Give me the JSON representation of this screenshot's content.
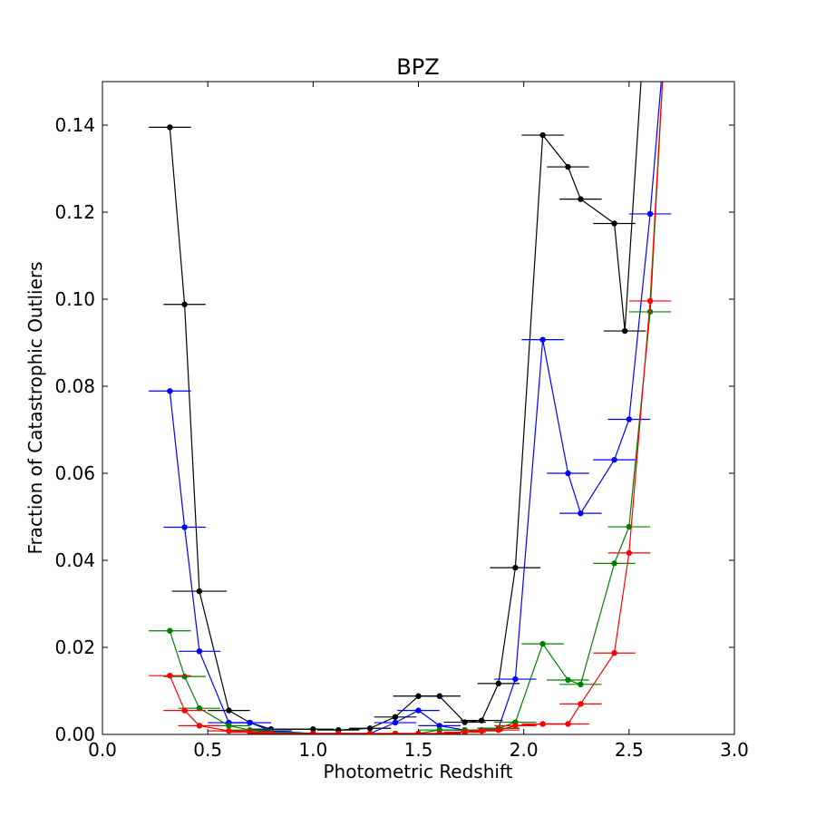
{
  "chart_data": {
    "type": "line",
    "title": "BPZ",
    "xlabel": "Photometric Redshift",
    "ylabel": "Fraction of Catastrophic Outliers",
    "xlim": [
      0.0,
      3.0
    ],
    "ylim": [
      0.0,
      0.15
    ],
    "xticks": [
      0.0,
      0.5,
      1.0,
      1.5,
      2.0,
      2.5,
      3.0
    ],
    "xtick_labels": [
      "0.0",
      "0.5",
      "1.0",
      "1.5",
      "2.0",
      "2.5",
      "3.0"
    ],
    "yticks": [
      0.0,
      0.02,
      0.04,
      0.06,
      0.08,
      0.1,
      0.12,
      0.14
    ],
    "ytick_labels": [
      "0.00",
      "0.02",
      "0.04",
      "0.06",
      "0.08",
      "0.10",
      "0.12",
      "0.14"
    ],
    "grid": false,
    "series": [
      {
        "color": "#000000",
        "points": [
          {
            "x": 0.32,
            "y": 0.1395,
            "xerr": 0.1
          },
          {
            "x": 0.39,
            "y": 0.0988,
            "xerr": 0.1
          },
          {
            "x": 0.46,
            "y": 0.0329,
            "xerr": 0.13
          },
          {
            "x": 0.6,
            "y": 0.0055,
            "xerr": 0.1
          },
          {
            "x": 0.7,
            "y": 0.0027,
            "xerr": 0.1
          },
          {
            "x": 0.8,
            "y": 0.0012,
            "xerr": 0.1
          },
          {
            "x": 1.0,
            "y": 0.0012,
            "xerr": 0.1
          },
          {
            "x": 1.12,
            "y": 0.001,
            "xerr": 0.1
          },
          {
            "x": 1.27,
            "y": 0.0014,
            "xerr": 0.1
          },
          {
            "x": 1.39,
            "y": 0.004,
            "xerr": 0.1
          },
          {
            "x": 1.5,
            "y": 0.0088,
            "xerr": 0.12
          },
          {
            "x": 1.6,
            "y": 0.0088,
            "xerr": 0.1
          },
          {
            "x": 1.72,
            "y": 0.0028,
            "xerr": 0.1
          },
          {
            "x": 1.8,
            "y": 0.0032,
            "xerr": 0.1
          },
          {
            "x": 1.88,
            "y": 0.0117,
            "xerr": 0.1
          },
          {
            "x": 1.96,
            "y": 0.0383,
            "xerr": 0.12
          },
          {
            "x": 2.09,
            "y": 0.1377,
            "xerr": 0.1
          },
          {
            "x": 2.21,
            "y": 0.1304,
            "xerr": 0.1
          },
          {
            "x": 2.27,
            "y": 0.123,
            "xerr": 0.1
          },
          {
            "x": 2.43,
            "y": 0.1174,
            "xerr": 0.1
          },
          {
            "x": 2.48,
            "y": 0.0927,
            "xerr": 0.1
          },
          {
            "x": 2.57,
            "y": 0.16,
            "xerr": 0.0
          }
        ]
      },
      {
        "color": "#0000ff",
        "points": [
          {
            "x": 0.32,
            "y": 0.0789,
            "xerr": 0.1
          },
          {
            "x": 0.39,
            "y": 0.0476,
            "xerr": 0.1
          },
          {
            "x": 0.46,
            "y": 0.0191,
            "xerr": 0.1
          },
          {
            "x": 0.6,
            "y": 0.0027,
            "xerr": 0.1
          },
          {
            "x": 0.7,
            "y": 0.0027,
            "xerr": 0.1
          },
          {
            "x": 0.8,
            "y": 0.0008,
            "xerr": 0.1
          },
          {
            "x": 1.0,
            "y": 0.0002,
            "xerr": 0.1
          },
          {
            "x": 1.12,
            "y": 0.0002,
            "xerr": 0.1
          },
          {
            "x": 1.27,
            "y": 0.0002,
            "xerr": 0.1
          },
          {
            "x": 1.39,
            "y": 0.0027,
            "xerr": 0.1
          },
          {
            "x": 1.5,
            "y": 0.0055,
            "xerr": 0.1
          },
          {
            "x": 1.6,
            "y": 0.002,
            "xerr": 0.1
          },
          {
            "x": 1.72,
            "y": 0.001,
            "xerr": 0.1
          },
          {
            "x": 1.8,
            "y": 0.001,
            "xerr": 0.1
          },
          {
            "x": 1.88,
            "y": 0.0014,
            "xerr": 0.1
          },
          {
            "x": 1.96,
            "y": 0.0127,
            "xerr": 0.1
          },
          {
            "x": 2.09,
            "y": 0.0907,
            "xerr": 0.1
          },
          {
            "x": 2.21,
            "y": 0.06,
            "xerr": 0.1
          },
          {
            "x": 2.27,
            "y": 0.0508,
            "xerr": 0.1
          },
          {
            "x": 2.43,
            "y": 0.0631,
            "xerr": 0.1
          },
          {
            "x": 2.5,
            "y": 0.0724,
            "xerr": 0.1
          },
          {
            "x": 2.6,
            "y": 0.1196,
            "xerr": 0.1
          },
          {
            "x": 2.67,
            "y": 0.16,
            "xerr": 0.0
          }
        ]
      },
      {
        "color": "#008000",
        "points": [
          {
            "x": 0.32,
            "y": 0.0238,
            "xerr": 0.1
          },
          {
            "x": 0.39,
            "y": 0.0133,
            "xerr": 0.1
          },
          {
            "x": 0.46,
            "y": 0.006,
            "xerr": 0.1
          },
          {
            "x": 0.6,
            "y": 0.002,
            "xerr": 0.1
          },
          {
            "x": 0.7,
            "y": 0.001,
            "xerr": 0.1
          },
          {
            "x": 0.8,
            "y": 0.0005,
            "xerr": 0.1
          },
          {
            "x": 1.0,
            "y": 0.0002,
            "xerr": 0.1
          },
          {
            "x": 1.12,
            "y": 0.0002,
            "xerr": 0.1
          },
          {
            "x": 1.27,
            "y": 0.0002,
            "xerr": 0.1
          },
          {
            "x": 1.39,
            "y": 0.0002,
            "xerr": 0.1
          },
          {
            "x": 1.5,
            "y": 0.0002,
            "xerr": 0.1
          },
          {
            "x": 1.6,
            "y": 0.001,
            "xerr": 0.1
          },
          {
            "x": 1.72,
            "y": 0.001,
            "xerr": 0.1
          },
          {
            "x": 1.8,
            "y": 0.001,
            "xerr": 0.1
          },
          {
            "x": 1.88,
            "y": 0.0014,
            "xerr": 0.1
          },
          {
            "x": 1.96,
            "y": 0.0028,
            "xerr": 0.1
          },
          {
            "x": 2.09,
            "y": 0.0208,
            "xerr": 0.1
          },
          {
            "x": 2.21,
            "y": 0.0125,
            "xerr": 0.1
          },
          {
            "x": 2.27,
            "y": 0.0115,
            "xerr": 0.1
          },
          {
            "x": 2.43,
            "y": 0.0393,
            "xerr": 0.1
          },
          {
            "x": 2.5,
            "y": 0.0477,
            "xerr": 0.1
          },
          {
            "x": 2.6,
            "y": 0.0971,
            "xerr": 0.1
          },
          {
            "x": 2.67,
            "y": 0.16,
            "xerr": 0.0
          }
        ]
      },
      {
        "color": "#ff0000",
        "points": [
          {
            "x": 0.32,
            "y": 0.0135,
            "xerr": 0.1
          },
          {
            "x": 0.39,
            "y": 0.0055,
            "xerr": 0.1
          },
          {
            "x": 0.46,
            "y": 0.002,
            "xerr": 0.1
          },
          {
            "x": 0.6,
            "y": 0.0008,
            "xerr": 0.1
          },
          {
            "x": 0.7,
            "y": 0.0005,
            "xerr": 0.1
          },
          {
            "x": 0.8,
            "y": 0.0002,
            "xerr": 0.1
          },
          {
            "x": 1.0,
            "y": 0.0002,
            "xerr": 0.1
          },
          {
            "x": 1.12,
            "y": 0.0002,
            "xerr": 0.1
          },
          {
            "x": 1.27,
            "y": 0.0002,
            "xerr": 0.1
          },
          {
            "x": 1.39,
            "y": 0.0002,
            "xerr": 0.1
          },
          {
            "x": 1.5,
            "y": 0.0002,
            "xerr": 0.1
          },
          {
            "x": 1.6,
            "y": 0.0002,
            "xerr": 0.1
          },
          {
            "x": 1.72,
            "y": 0.0005,
            "xerr": 0.1
          },
          {
            "x": 1.8,
            "y": 0.0008,
            "xerr": 0.1
          },
          {
            "x": 1.88,
            "y": 0.001,
            "xerr": 0.1
          },
          {
            "x": 1.96,
            "y": 0.002,
            "xerr": 0.1
          },
          {
            "x": 2.09,
            "y": 0.0024,
            "xerr": 0.1
          },
          {
            "x": 2.21,
            "y": 0.0024,
            "xerr": 0.1
          },
          {
            "x": 2.27,
            "y": 0.007,
            "xerr": 0.1
          },
          {
            "x": 2.43,
            "y": 0.0187,
            "xerr": 0.1
          },
          {
            "x": 2.5,
            "y": 0.0417,
            "xerr": 0.1
          },
          {
            "x": 2.6,
            "y": 0.0996,
            "xerr": 0.1
          },
          {
            "x": 2.67,
            "y": 0.16,
            "xerr": 0.0
          }
        ]
      }
    ]
  }
}
